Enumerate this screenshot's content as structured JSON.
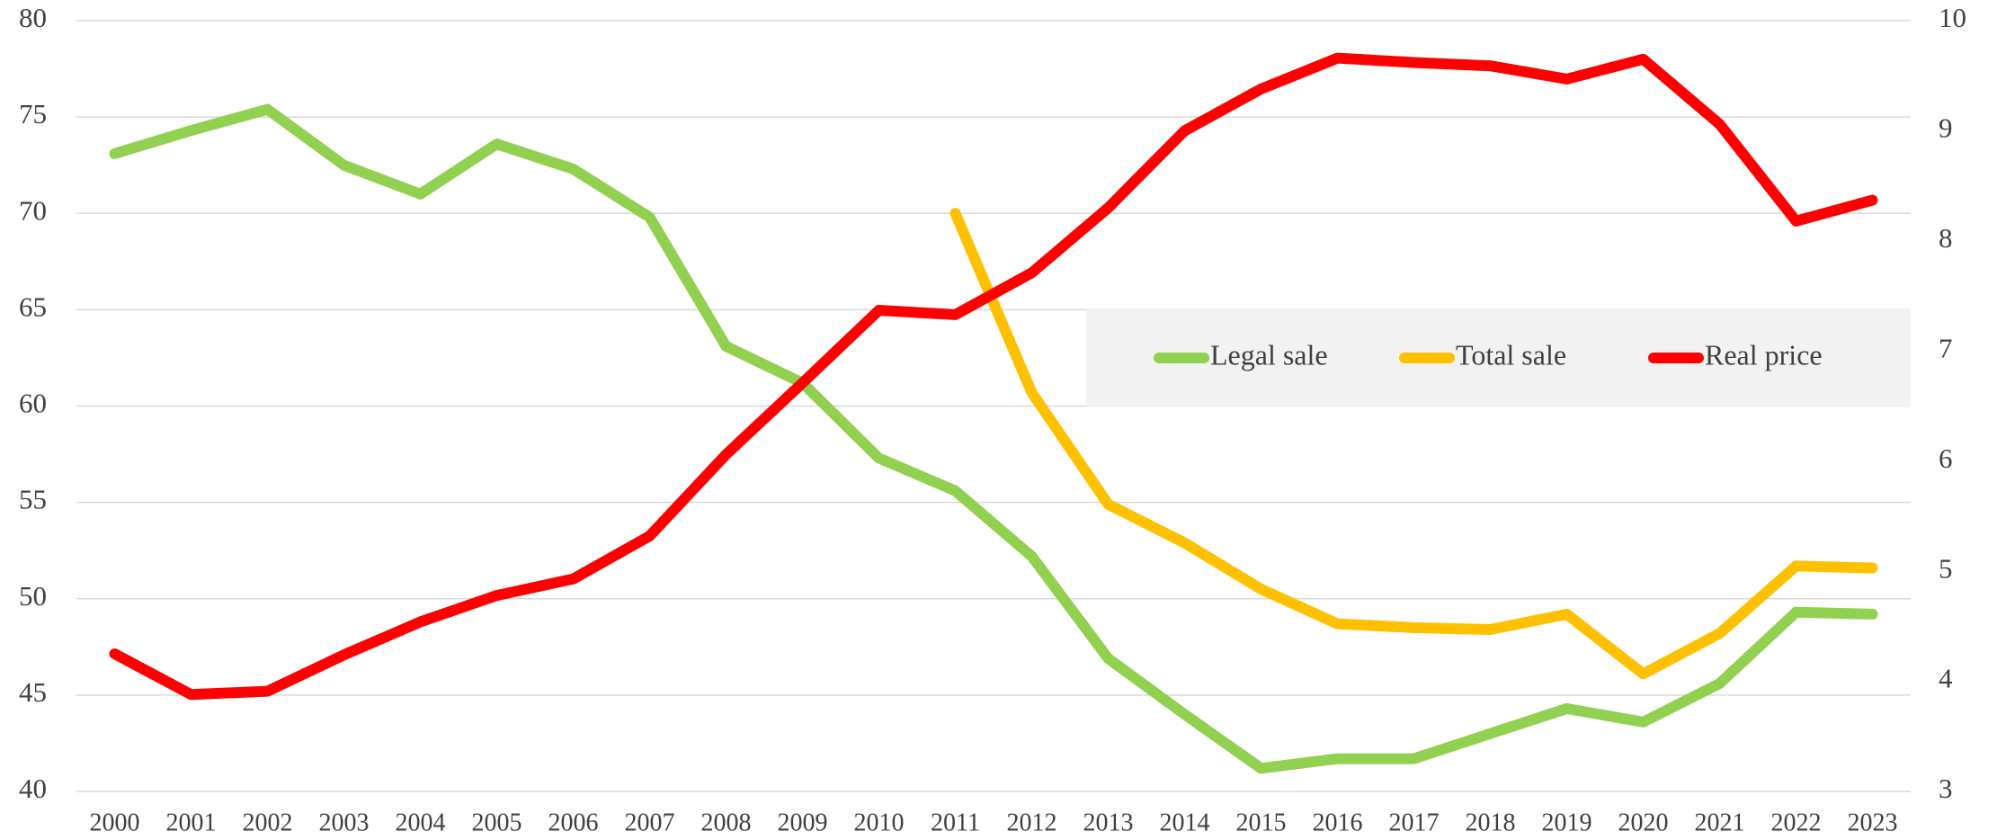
{
  "chart_data": {
    "type": "line",
    "categories": [
      "2000",
      "2001",
      "2002",
      "2003",
      "2004",
      "2005",
      "2006",
      "2007",
      "2008",
      "2009",
      "2010",
      "2011",
      "2012",
      "2013",
      "2014",
      "2015",
      "2016",
      "2017",
      "2018",
      "2019",
      "2020",
      "2021",
      "2022",
      "2023"
    ],
    "series": [
      {
        "name": "Legal sale",
        "color": "#92d050",
        "values": [
          73.1,
          74.3,
          75.4,
          72.5,
          71.0,
          73.6,
          72.3,
          69.8,
          63.1,
          61.2,
          57.3,
          55.6,
          52.2,
          46.9,
          44.0,
          41.2,
          41.7,
          41.7,
          43.0,
          44.3,
          43.6,
          45.6,
          49.3,
          49.2
        ]
      },
      {
        "name": "Total sale",
        "color": "#ffc000",
        "values": [
          null,
          null,
          null,
          null,
          null,
          null,
          null,
          null,
          null,
          null,
          null,
          70.0,
          60.7,
          54.9,
          52.9,
          50.5,
          48.7,
          48.5,
          48.4,
          49.2,
          46.1,
          48.2,
          51.7,
          51.6
        ]
      },
      {
        "name": "Real price",
        "color": "#ff0000",
        "axis": "y2",
        "values": [
          4.25,
          3.88,
          3.91,
          4.24,
          4.54,
          4.78,
          4.93,
          5.32,
          6.06,
          6.71,
          7.37,
          7.33,
          7.71,
          8.3,
          9.0,
          9.38,
          9.66,
          9.62,
          9.59,
          9.47,
          9.65,
          9.06,
          8.18,
          8.37
        ]
      }
    ],
    "ylim": [
      40,
      80
    ],
    "yticks": [
      40,
      45,
      50,
      55,
      60,
      65,
      70,
      75,
      80
    ],
    "y2lim": [
      3,
      10
    ],
    "y2ticks": [
      3,
      4,
      5,
      6,
      7,
      8,
      9,
      10
    ],
    "grid": true,
    "legend": "right"
  }
}
